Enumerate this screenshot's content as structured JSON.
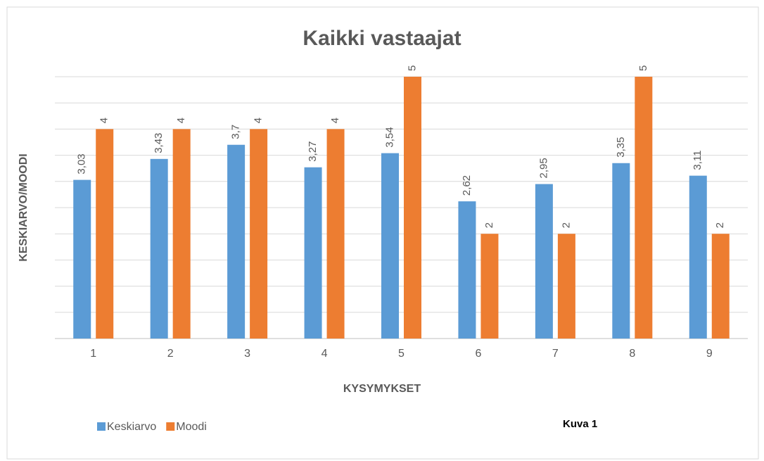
{
  "chart_data": {
    "type": "bar",
    "title": "Kaikki vastaajat",
    "xlabel": "KYSYMYKSET",
    "ylabel": "KESKIARVO/MOODI",
    "annotation": "Kuva 1",
    "categories": [
      "1",
      "2",
      "3",
      "4",
      "5",
      "6",
      "7",
      "8",
      "9"
    ],
    "series": [
      {
        "name": "Keskiarvo",
        "color": "#5b9bd5",
        "values": [
          3.03,
          3.43,
          3.7,
          3.27,
          3.54,
          2.62,
          2.95,
          3.35,
          3.11
        ],
        "value_labels": [
          "3,03",
          "3,43",
          "3,7",
          "3,27",
          "3,54",
          "2,62",
          "2,95",
          "3,35",
          "3,11"
        ]
      },
      {
        "name": "Moodi",
        "color": "#ed7d31",
        "values": [
          4,
          4,
          4,
          4,
          5,
          2,
          2,
          5,
          2
        ]
      }
    ],
    "ylim": [
      0,
      5
    ],
    "yticks": [
      0,
      0.5,
      1,
      1.5,
      2,
      2.5,
      3,
      3.5,
      4,
      4.5,
      5
    ],
    "grid": true,
    "legend": "bottom-left"
  }
}
